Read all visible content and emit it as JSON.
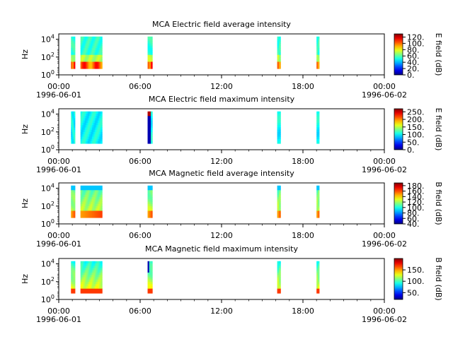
{
  "chart_data": [
    {
      "type": "heatmap",
      "title": "MCA  Electric field average intensity",
      "ylabel": "Hz",
      "y_scale": "log",
      "y_ticks": [
        {
          "exp": "0",
          "value": 1
        },
        {
          "exp": "2",
          "value": 100
        },
        {
          "exp": "4",
          "value": 10000
        }
      ],
      "x_ticks": [
        {
          "time": "00:00",
          "date": "1996-06-01",
          "hour": 0
        },
        {
          "time": "06:00",
          "date": "",
          "hour": 6
        },
        {
          "time": "12:00",
          "date": "",
          "hour": 12
        },
        {
          "time": "18:00",
          "date": "",
          "hour": 18
        },
        {
          "time": "00:00",
          "date": "1996-06-02",
          "hour": 24
        }
      ],
      "colorbar": {
        "label": "E field (dB)",
        "range": [
          0,
          130
        ],
        "ticks": [
          {
            "label": "0.",
            "value": 0
          },
          {
            "label": "20.",
            "value": 20
          },
          {
            "label": "40.",
            "value": 40
          },
          {
            "label": "60.",
            "value": 60
          },
          {
            "label": "80.",
            "value": 80
          },
          {
            "label": "100.",
            "value": 100
          },
          {
            "label": "120.",
            "value": 120
          }
        ]
      },
      "intervals_hours": [
        [
          0.9,
          1.2
        ],
        [
          1.6,
          3.2
        ],
        [
          6.55,
          6.9
        ],
        [
          16.1,
          16.35
        ],
        [
          19.0,
          19.2
        ]
      ]
    },
    {
      "type": "heatmap",
      "title": "MCA  Electric field maximum intensity",
      "ylabel": "Hz",
      "y_scale": "log",
      "y_ticks": [
        {
          "exp": "0",
          "value": 1
        },
        {
          "exp": "2",
          "value": 100
        },
        {
          "exp": "4",
          "value": 10000
        }
      ],
      "x_ticks": [
        {
          "time": "00:00",
          "date": "1996-06-01",
          "hour": 0
        },
        {
          "time": "06:00",
          "date": "",
          "hour": 6
        },
        {
          "time": "12:00",
          "date": "",
          "hour": 12
        },
        {
          "time": "18:00",
          "date": "",
          "hour": 18
        },
        {
          "time": "00:00",
          "date": "1996-06-02",
          "hour": 24
        }
      ],
      "colorbar": {
        "label": "E field (dB)",
        "range": [
          0,
          270
        ],
        "ticks": [
          {
            "label": "0.",
            "value": 0
          },
          {
            "label": "50.",
            "value": 50
          },
          {
            "label": "100.",
            "value": 100
          },
          {
            "label": "150.",
            "value": 150
          },
          {
            "label": "200.",
            "value": 200
          },
          {
            "label": "250.",
            "value": 250
          }
        ]
      },
      "intervals_hours": [
        [
          0.9,
          1.2
        ],
        [
          1.6,
          3.2
        ],
        [
          6.55,
          6.9
        ],
        [
          16.1,
          16.35
        ],
        [
          19.0,
          19.2
        ]
      ]
    },
    {
      "type": "heatmap",
      "title": "MCA  Magnetic field average intensity",
      "ylabel": "Hz",
      "y_scale": "log",
      "y_ticks": [
        {
          "exp": "0",
          "value": 1
        },
        {
          "exp": "2",
          "value": 100
        },
        {
          "exp": "4",
          "value": 10000
        }
      ],
      "x_ticks": [
        {
          "time": "00:00",
          "date": "1996-06-01",
          "hour": 0
        },
        {
          "time": "06:00",
          "date": "",
          "hour": 6
        },
        {
          "time": "12:00",
          "date": "",
          "hour": 12
        },
        {
          "time": "18:00",
          "date": "",
          "hour": 18
        },
        {
          "time": "00:00",
          "date": "1996-06-02",
          "hour": 24
        }
      ],
      "colorbar": {
        "label": "B field (dB)",
        "range": [
          40,
          190
        ],
        "ticks": [
          {
            "label": "40.",
            "value": 40
          },
          {
            "label": "60.",
            "value": 60
          },
          {
            "label": "80.",
            "value": 80
          },
          {
            "label": "100.",
            "value": 100
          },
          {
            "label": "120.",
            "value": 120
          },
          {
            "label": "140.",
            "value": 140
          },
          {
            "label": "160.",
            "value": 160
          },
          {
            "label": "180.",
            "value": 180
          }
        ]
      },
      "intervals_hours": [
        [
          0.9,
          1.2
        ],
        [
          1.6,
          3.2
        ],
        [
          6.55,
          6.9
        ],
        [
          16.1,
          16.35
        ],
        [
          19.0,
          19.2
        ]
      ]
    },
    {
      "type": "heatmap",
      "title": "MCA  Magnetic field maximum intensity",
      "ylabel": "Hz",
      "y_scale": "log",
      "y_ticks": [
        {
          "exp": "0",
          "value": 1
        },
        {
          "exp": "2",
          "value": 100
        },
        {
          "exp": "4",
          "value": 10000
        }
      ],
      "x_ticks": [
        {
          "time": "00:00",
          "date": "1996-06-01",
          "hour": 0
        },
        {
          "time": "06:00",
          "date": "",
          "hour": 6
        },
        {
          "time": "12:00",
          "date": "",
          "hour": 12
        },
        {
          "time": "18:00",
          "date": "",
          "hour": 18
        },
        {
          "time": "00:00",
          "date": "1996-06-02",
          "hour": 24
        }
      ],
      "colorbar": {
        "label": "B field (dB)",
        "range": [
          20,
          200
        ],
        "ticks": [
          {
            "label": "50.",
            "value": 50
          },
          {
            "label": "100.",
            "value": 100
          },
          {
            "label": "150.",
            "value": 150
          }
        ]
      },
      "intervals_hours": [
        [
          0.9,
          1.2
        ],
        [
          1.6,
          3.2
        ],
        [
          6.55,
          6.9
        ],
        [
          16.1,
          16.35
        ],
        [
          19.0,
          19.2
        ]
      ]
    }
  ]
}
